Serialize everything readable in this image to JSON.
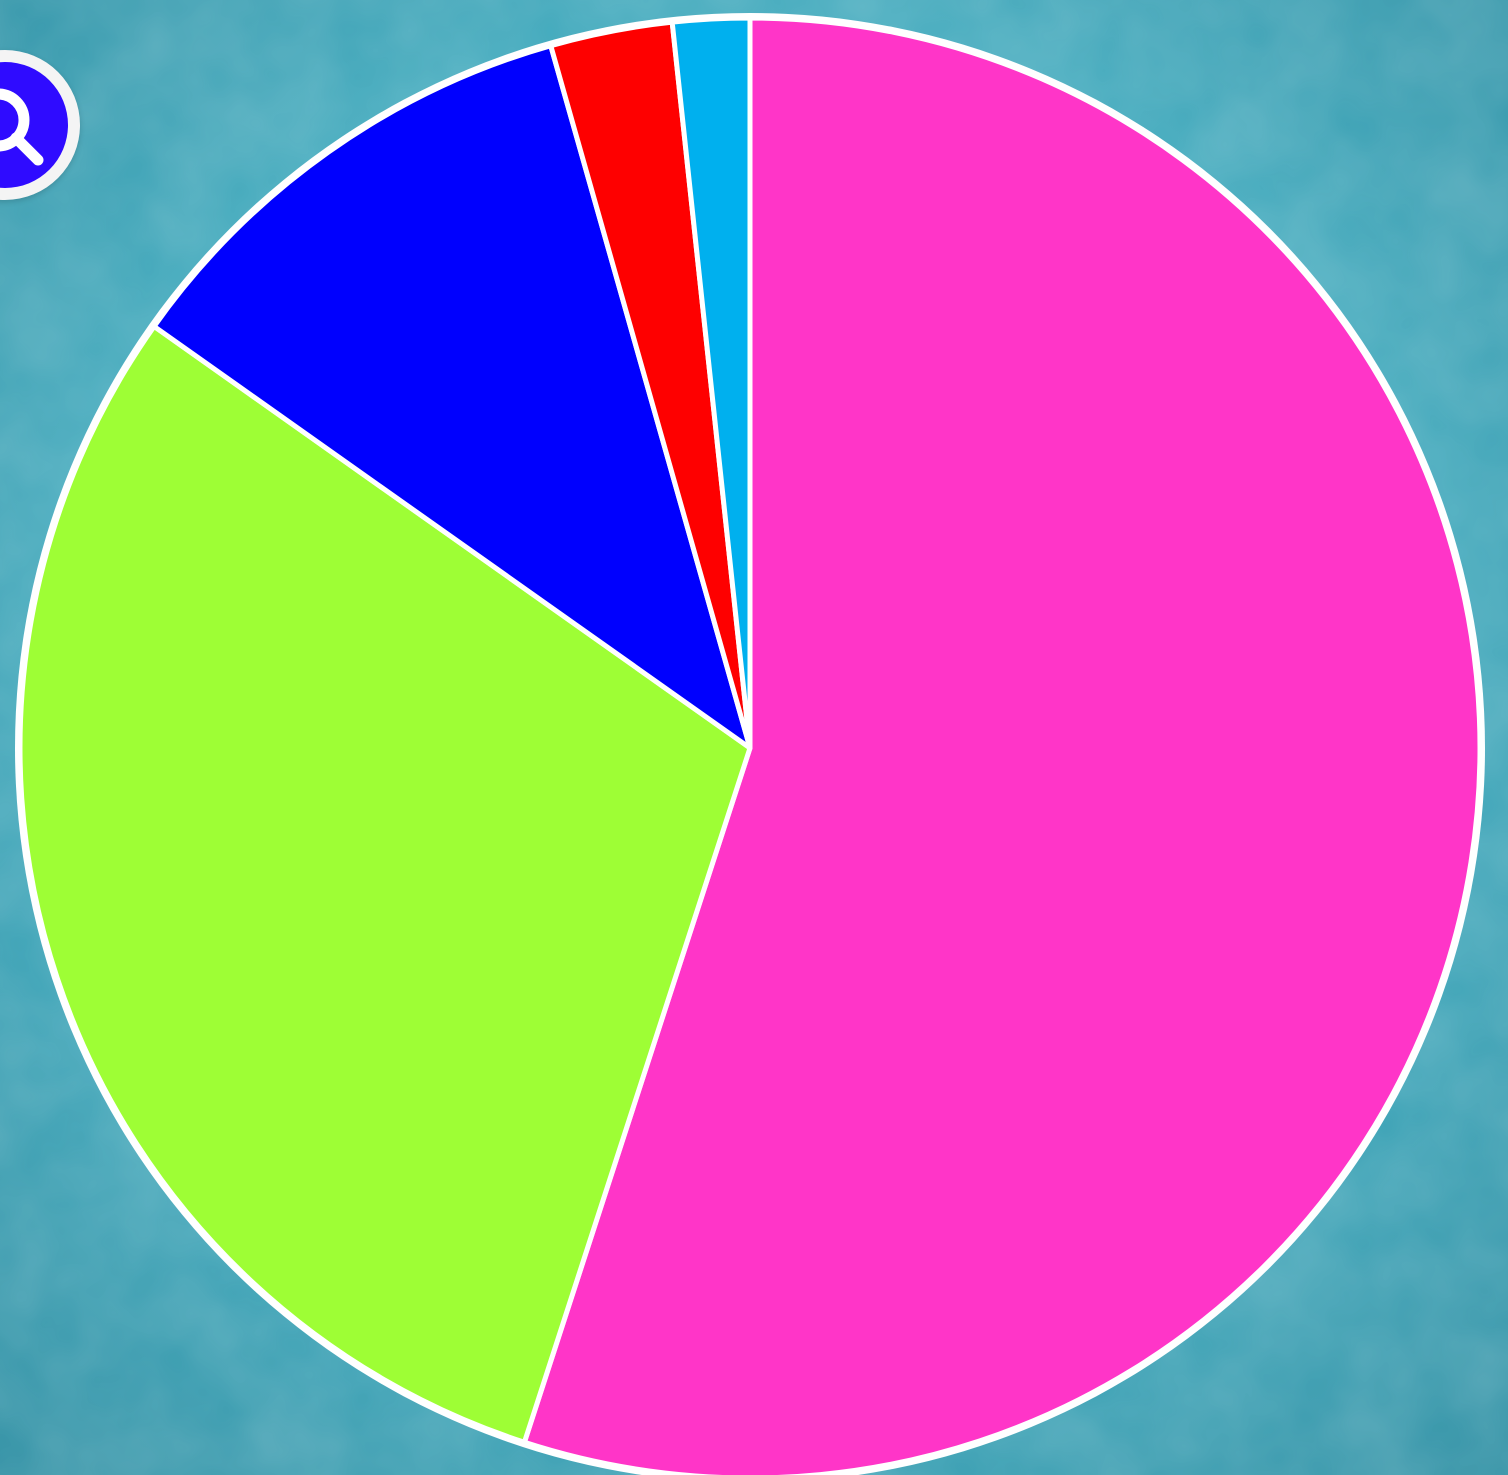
{
  "chart_data": {
    "type": "pie",
    "start_angle_deg": 0,
    "direction": "clockwise",
    "slices": [
      {
        "value": 55.0,
        "color": "#ff35c8"
      },
      {
        "value": 29.8,
        "color": "#9efe35"
      },
      {
        "value": 10.8,
        "color": "#0000fe"
      },
      {
        "value": 2.7,
        "color": "#fe0000"
      },
      {
        "value": 1.7,
        "color": "#00b0ee"
      }
    ],
    "legend": null
  },
  "colors": {
    "background": "#4bb3c6",
    "slice_border": "#ffffff",
    "logo_badge": "#2f0bff"
  },
  "icons": {
    "logo": "search-icon"
  }
}
